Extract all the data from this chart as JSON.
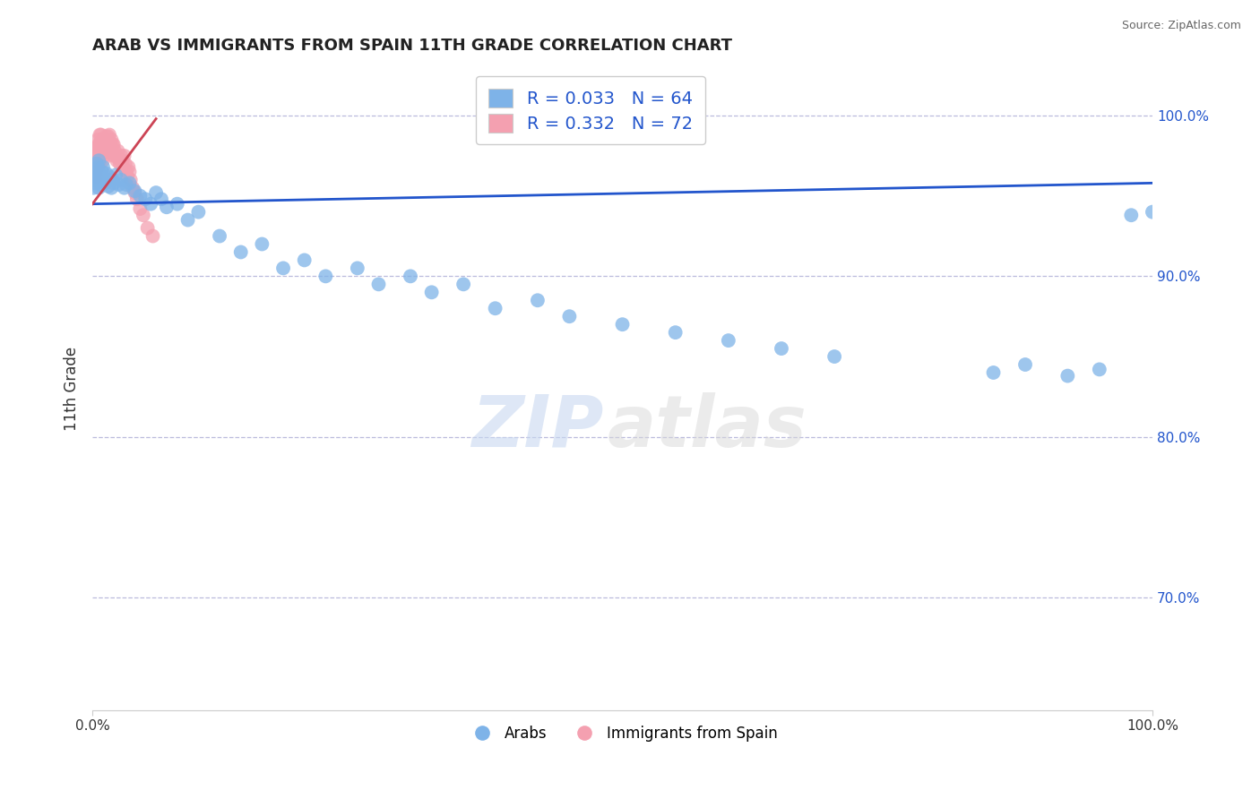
{
  "title": "ARAB VS IMMIGRANTS FROM SPAIN 11TH GRADE CORRELATION CHART",
  "source_text": "Source: ZipAtlas.com",
  "ylabel": "11th Grade",
  "right_yticks": [
    0.7,
    0.8,
    0.9,
    1.0
  ],
  "right_yticklabels": [
    "70.0%",
    "80.0%",
    "90.0%",
    "100.0%"
  ],
  "xlim": [
    0.0,
    1.0
  ],
  "ylim": [
    0.63,
    1.03
  ],
  "legend_blue_label": "R = 0.033   N = 64",
  "legend_pink_label": "R = 0.332   N = 72",
  "legend_blue_series": "Arabs",
  "legend_pink_series": "Immigrants from Spain",
  "blue_color": "#7EB3E8",
  "pink_color": "#F4A0B0",
  "blue_line_color": "#2255CC",
  "pink_line_color": "#CC4455",
  "background_color": "#ffffff",
  "grid_color": "#BBBBDD",
  "watermark": "ZIPatlas",
  "blue_scatter_x": [
    0.001,
    0.002,
    0.003,
    0.003,
    0.004,
    0.004,
    0.005,
    0.005,
    0.006,
    0.006,
    0.007,
    0.008,
    0.009,
    0.01,
    0.01,
    0.012,
    0.013,
    0.014,
    0.015,
    0.016,
    0.018,
    0.019,
    0.02,
    0.022,
    0.025,
    0.027,
    0.03,
    0.032,
    0.035,
    0.04,
    0.045,
    0.05,
    0.055,
    0.06,
    0.065,
    0.07,
    0.08,
    0.09,
    0.1,
    0.12,
    0.14,
    0.16,
    0.18,
    0.2,
    0.22,
    0.25,
    0.27,
    0.3,
    0.32,
    0.35,
    0.38,
    0.42,
    0.45,
    0.5,
    0.55,
    0.6,
    0.65,
    0.7,
    0.85,
    0.88,
    0.92,
    0.95,
    0.98,
    1.0
  ],
  "blue_scatter_y": [
    0.955,
    0.96,
    0.958,
    0.965,
    0.962,
    0.97,
    0.96,
    0.968,
    0.955,
    0.972,
    0.963,
    0.957,
    0.965,
    0.96,
    0.968,
    0.958,
    0.964,
    0.96,
    0.956,
    0.962,
    0.955,
    0.96,
    0.958,
    0.963,
    0.957,
    0.96,
    0.955,
    0.957,
    0.958,
    0.953,
    0.95,
    0.948,
    0.945,
    0.952,
    0.948,
    0.943,
    0.945,
    0.935,
    0.94,
    0.925,
    0.915,
    0.92,
    0.905,
    0.91,
    0.9,
    0.905,
    0.895,
    0.9,
    0.89,
    0.895,
    0.88,
    0.885,
    0.875,
    0.87,
    0.865,
    0.86,
    0.855,
    0.85,
    0.84,
    0.845,
    0.838,
    0.842,
    0.938,
    0.94
  ],
  "pink_scatter_x": [
    0.001,
    0.001,
    0.002,
    0.002,
    0.002,
    0.003,
    0.003,
    0.003,
    0.004,
    0.004,
    0.004,
    0.004,
    0.005,
    0.005,
    0.005,
    0.005,
    0.006,
    0.006,
    0.006,
    0.007,
    0.007,
    0.007,
    0.007,
    0.008,
    0.008,
    0.008,
    0.009,
    0.009,
    0.01,
    0.01,
    0.01,
    0.011,
    0.011,
    0.012,
    0.012,
    0.013,
    0.013,
    0.014,
    0.014,
    0.015,
    0.015,
    0.016,
    0.016,
    0.017,
    0.018,
    0.018,
    0.019,
    0.02,
    0.02,
    0.021,
    0.022,
    0.023,
    0.024,
    0.025,
    0.026,
    0.027,
    0.028,
    0.029,
    0.03,
    0.031,
    0.032,
    0.033,
    0.034,
    0.035,
    0.036,
    0.038,
    0.04,
    0.042,
    0.045,
    0.048,
    0.052,
    0.057
  ],
  "pink_scatter_y": [
    0.968,
    0.972,
    0.96,
    0.968,
    0.975,
    0.965,
    0.972,
    0.978,
    0.962,
    0.97,
    0.975,
    0.98,
    0.968,
    0.975,
    0.98,
    0.985,
    0.97,
    0.977,
    0.982,
    0.972,
    0.978,
    0.983,
    0.988,
    0.975,
    0.98,
    0.988,
    0.977,
    0.983,
    0.972,
    0.978,
    0.985,
    0.975,
    0.982,
    0.978,
    0.985,
    0.98,
    0.987,
    0.978,
    0.985,
    0.98,
    0.987,
    0.98,
    0.988,
    0.982,
    0.978,
    0.985,
    0.982,
    0.975,
    0.982,
    0.978,
    0.975,
    0.972,
    0.978,
    0.973,
    0.97,
    0.975,
    0.972,
    0.968,
    0.975,
    0.97,
    0.965,
    0.962,
    0.968,
    0.965,
    0.96,
    0.955,
    0.952,
    0.948,
    0.942,
    0.938,
    0.93,
    0.925
  ],
  "blue_trend_x": [
    0.0,
    1.0
  ],
  "blue_trend_y": [
    0.945,
    0.958
  ],
  "pink_trend_x": [
    0.0,
    0.06
  ],
  "pink_trend_y": [
    0.945,
    0.998
  ]
}
